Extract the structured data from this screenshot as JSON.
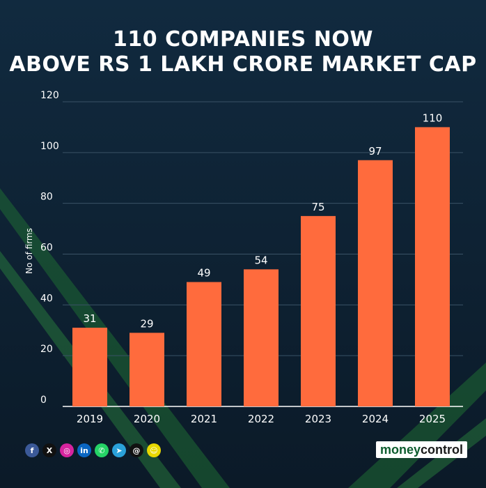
{
  "title": {
    "line1": "110 COMPANIES NOW",
    "line2": "ABOVE RS 1 LAKH CRORE MARKET CAP"
  },
  "chart_data": {
    "type": "bar",
    "categories": [
      "2019",
      "2020",
      "2021",
      "2022",
      "2023",
      "2024",
      "2025"
    ],
    "values": [
      31,
      29,
      49,
      54,
      75,
      97,
      110
    ],
    "ylabel": "No of firms",
    "xlabel": "",
    "ylim": [
      0,
      120
    ],
    "yticks": [
      0,
      20,
      40,
      60,
      80,
      100,
      120
    ],
    "grid": true,
    "bar_color": "#ff6b3d",
    "background_color": "#0f2233"
  },
  "social_icons": [
    {
      "name": "facebook-icon",
      "glyph": "f",
      "color": "#3b5998"
    },
    {
      "name": "x-icon",
      "glyph": "X",
      "color": "#111111"
    },
    {
      "name": "instagram-icon",
      "glyph": "◎",
      "color": "#d6249f"
    },
    {
      "name": "linkedin-icon",
      "glyph": "in",
      "color": "#0a66c2"
    },
    {
      "name": "whatsapp-icon",
      "glyph": "✆",
      "color": "#25d366"
    },
    {
      "name": "telegram-icon",
      "glyph": "➤",
      "color": "#2aa1da"
    },
    {
      "name": "threads-icon",
      "glyph": "@",
      "color": "#111111"
    },
    {
      "name": "snapchat-icon",
      "glyph": "☺",
      "color": "#e8d800"
    }
  ],
  "brand": {
    "part1": "money",
    "part2": "control",
    "accent": "#0d5c2e"
  }
}
